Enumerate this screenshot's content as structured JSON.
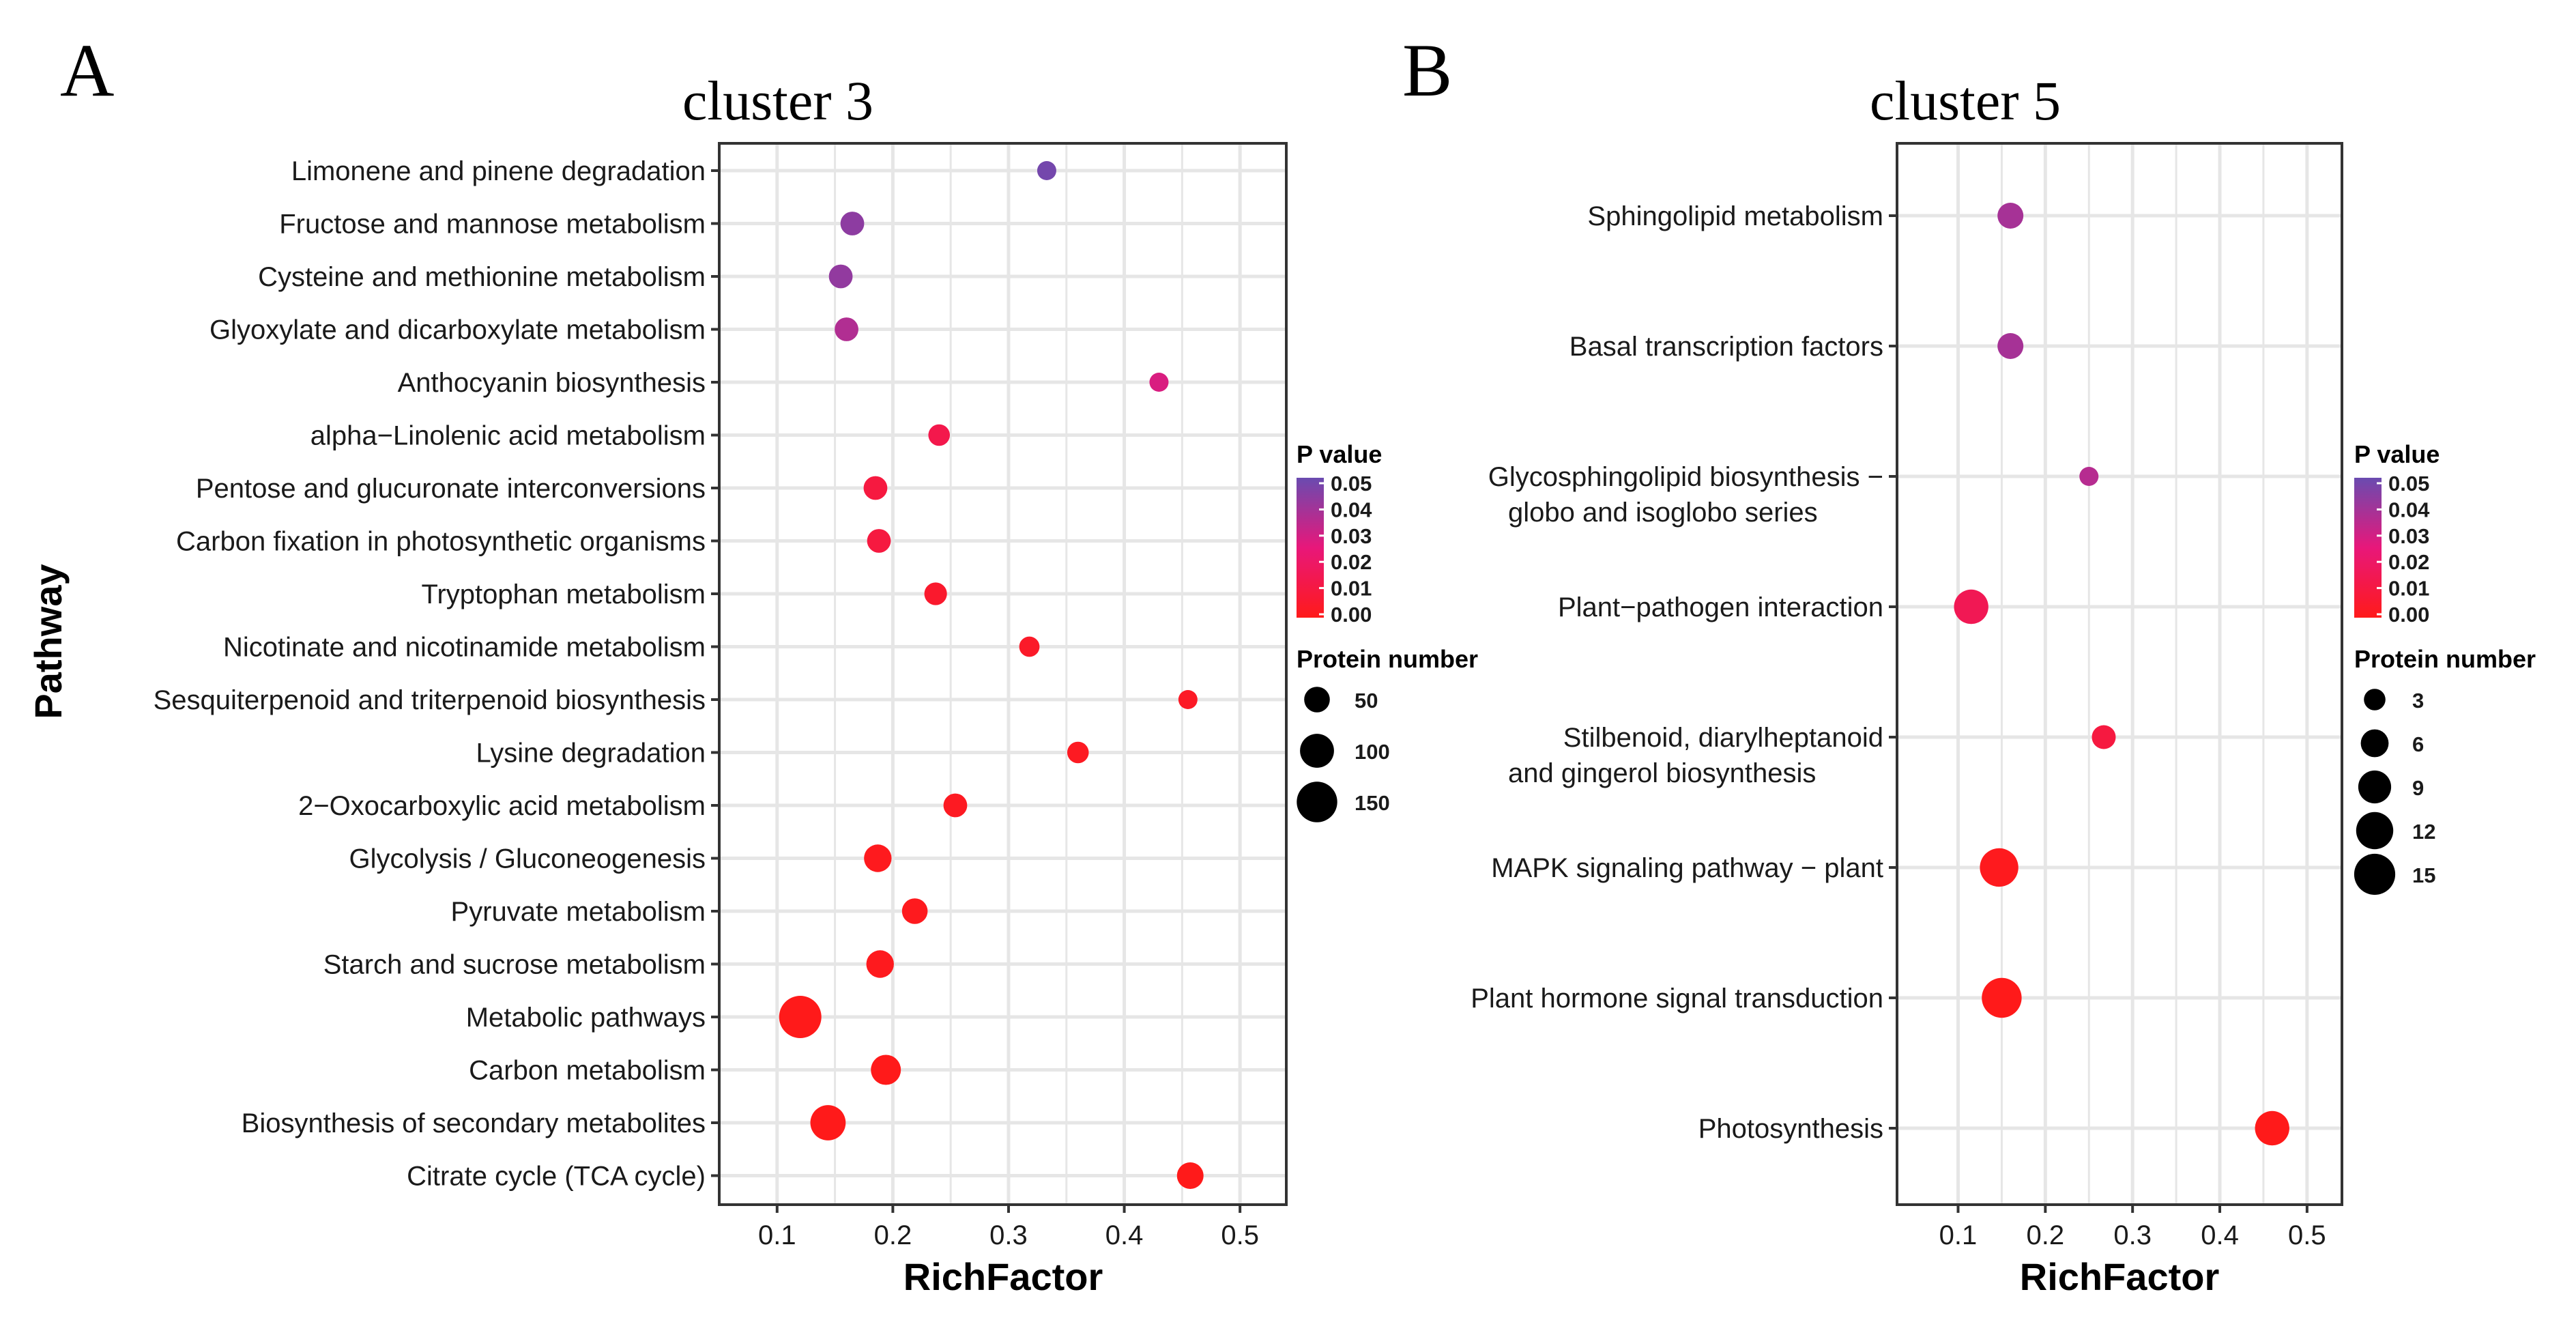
{
  "figure": {
    "panel_a_letter": "A",
    "panel_b_letter": "B"
  },
  "legend_labels": {
    "p_value_title": "P value",
    "size_title": "Protein number"
  },
  "colors": {
    "low_p": "#ff1a1a",
    "mid_p": "#e8177a",
    "high_p": "#6a4bb0",
    "grid": "#e6e6e6",
    "panel_border": "#333333"
  },
  "chart_data": [
    {
      "type": "scatter",
      "title": "cluster 3",
      "xlabel": "RichFactor",
      "ylabel": "Pathway",
      "xlim": [
        0.05,
        0.54
      ],
      "xticks": [
        0.1,
        0.2,
        0.3,
        0.4,
        0.5
      ],
      "xtick_labels": [
        "0.1",
        "0.2",
        "0.3",
        "0.4",
        "0.5"
      ],
      "grid": true,
      "size_range": [
        20,
        165
      ],
      "pvalue_ticks": [
        "0.05",
        "0.04",
        "0.03",
        "0.02",
        "0.01",
        "0.00"
      ],
      "size_ticks": [
        50,
        100,
        150
      ],
      "points": [
        {
          "pathway": "Limonene and pinene degradation",
          "rich_factor": 0.333,
          "p_value": 0.048,
          "protein_number": 10
        },
        {
          "pathway": "Fructose and mannose metabolism",
          "rich_factor": 0.165,
          "p_value": 0.043,
          "protein_number": 40
        },
        {
          "pathway": "Cysteine and methionine metabolism",
          "rich_factor": 0.155,
          "p_value": 0.042,
          "protein_number": 40
        },
        {
          "pathway": "Glyoxylate and dicarboxylate metabolism",
          "rich_factor": 0.16,
          "p_value": 0.036,
          "protein_number": 40
        },
        {
          "pathway": "Anthocyanin biosynthesis",
          "rich_factor": 0.43,
          "p_value": 0.028,
          "protein_number": 10
        },
        {
          "pathway": "alpha−Linolenic acid metabolism",
          "rich_factor": 0.24,
          "p_value": 0.013,
          "protein_number": 30
        },
        {
          "pathway": "Pentose and glucuronate interconversions",
          "rich_factor": 0.185,
          "p_value": 0.01,
          "protein_number": 40
        },
        {
          "pathway": "Carbon fixation in photosynthetic organisms",
          "rich_factor": 0.188,
          "p_value": 0.01,
          "protein_number": 40
        },
        {
          "pathway": "Tryptophan metabolism",
          "rich_factor": 0.237,
          "p_value": 0.005,
          "protein_number": 35
        },
        {
          "pathway": "Nicotinate and nicotinamide metabolism",
          "rich_factor": 0.318,
          "p_value": 0.004,
          "protein_number": 25
        },
        {
          "pathway": "Sesquiterpenoid and triterpenoid biosynthesis",
          "rich_factor": 0.455,
          "p_value": 0.003,
          "protein_number": 18
        },
        {
          "pathway": "Lysine degradation",
          "rich_factor": 0.36,
          "p_value": 0.002,
          "protein_number": 30
        },
        {
          "pathway": "2−Oxocarboxylic acid metabolism",
          "rich_factor": 0.254,
          "p_value": 0.002,
          "protein_number": 40
        },
        {
          "pathway": "Glycolysis / Gluconeogenesis",
          "rich_factor": 0.187,
          "p_value": 0.001,
          "protein_number": 60
        },
        {
          "pathway": "Pyruvate metabolism",
          "rich_factor": 0.219,
          "p_value": 0.001,
          "protein_number": 50
        },
        {
          "pathway": "Starch and sucrose metabolism",
          "rich_factor": 0.189,
          "p_value": 0.001,
          "protein_number": 60
        },
        {
          "pathway": "Metabolic pathways",
          "rich_factor": 0.12,
          "p_value": 0.0,
          "protein_number": 165
        },
        {
          "pathway": "Carbon metabolism",
          "rich_factor": 0.194,
          "p_value": 0.0,
          "protein_number": 75
        },
        {
          "pathway": "Biosynthesis of secondary metabolites",
          "rich_factor": 0.144,
          "p_value": 0.0,
          "protein_number": 110
        },
        {
          "pathway": "Citrate cycle (TCA cycle)",
          "rich_factor": 0.457,
          "p_value": 0.0,
          "protein_number": 55
        }
      ]
    },
    {
      "type": "scatter",
      "title": "cluster 5",
      "xlabel": "RichFactor",
      "ylabel": "",
      "xlim": [
        0.03,
        0.54
      ],
      "xticks": [
        0.1,
        0.2,
        0.3,
        0.4,
        0.5
      ],
      "xtick_labels": [
        "0.1",
        "0.2",
        "0.3",
        "0.4",
        "0.5"
      ],
      "grid": true,
      "size_range": [
        2,
        16
      ],
      "pvalue_ticks": [
        "0.05",
        "0.04",
        "0.03",
        "0.02",
        "0.01",
        "0.00"
      ],
      "size_ticks": [
        3,
        6,
        9,
        12,
        15
      ],
      "points": [
        {
          "pathway": "Sphingolipid metabolism",
          "pathway_lines": [
            "Sphingolipid metabolism"
          ],
          "rich_factor": 0.16,
          "p_value": 0.038,
          "protein_number": 5
        },
        {
          "pathway": "Basal transcription factors",
          "pathway_lines": [
            "Basal transcription factors"
          ],
          "rich_factor": 0.16,
          "p_value": 0.038,
          "protein_number": 5
        },
        {
          "pathway": "Glycosphingolipid biosynthesis − globo and isoglobo series",
          "pathway_lines": [
            "Glycosphingolipid biosynthesis −",
            "globo and isoglobo series"
          ],
          "rich_factor": 0.25,
          "p_value": 0.035,
          "protein_number": 2
        },
        {
          "pathway": "Plant−pathogen interaction",
          "pathway_lines": [
            "Plant−pathogen interaction"
          ],
          "rich_factor": 0.115,
          "p_value": 0.015,
          "protein_number": 10
        },
        {
          "pathway": "Stilbenoid, diarylheptanoid and gingerol biosynthesis",
          "pathway_lines": [
            "Stilbenoid, diarylheptanoid",
            "and gingerol biosynthesis"
          ],
          "rich_factor": 0.267,
          "p_value": 0.01,
          "protein_number": 4
        },
        {
          "pathway": "MAPK signaling pathway − plant",
          "pathway_lines": [
            "MAPK signaling pathway − plant"
          ],
          "rich_factor": 0.147,
          "p_value": 0.001,
          "protein_number": 13
        },
        {
          "pathway": "Plant hormone signal transduction",
          "pathway_lines": [
            "Plant hormone signal transduction"
          ],
          "rich_factor": 0.15,
          "p_value": 0.0,
          "protein_number": 14
        },
        {
          "pathway": "Photosynthesis",
          "pathway_lines": [
            "Photosynthesis"
          ],
          "rich_factor": 0.46,
          "p_value": 0.0,
          "protein_number": 10
        }
      ]
    }
  ]
}
